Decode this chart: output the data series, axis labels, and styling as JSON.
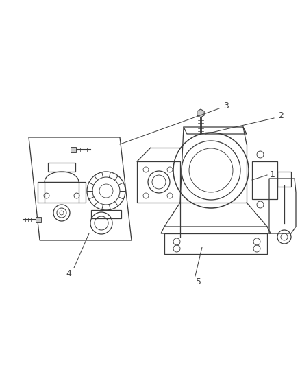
{
  "background_color": "#ffffff",
  "line_color": "#3a3a3a",
  "light_gray": "#aaaaaa",
  "mid_gray": "#888888",
  "label_color": "#444444",
  "fig_width": 4.38,
  "fig_height": 5.33,
  "dpi": 100
}
